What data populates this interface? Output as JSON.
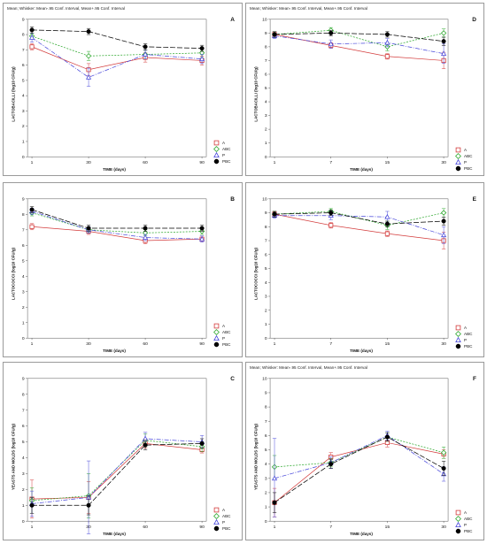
{
  "header_text": "Mean;  Whisker: Mean-.95 Conf. Interval, Mean+.95 Conf. Interval",
  "legend": [
    {
      "name": "A",
      "marker": "square",
      "color": "#d33b3b",
      "dash": ""
    },
    {
      "name": "ABC",
      "marker": "diamond",
      "color": "#2ea82e",
      "dash": "2,1.5"
    },
    {
      "name": "P",
      "marker": "triangle",
      "color": "#4a4adb",
      "dash": "5,1.5,1,1.5"
    },
    {
      "name": "PBC",
      "marker": "circle",
      "color": "#000000",
      "dash": "6,2"
    }
  ],
  "chart_data": [
    {
      "type": "line",
      "panel": "A",
      "title": "Mean;  Whisker: Mean-.95 Conf. Interval, Mean+.95 Conf. Interval",
      "xlabel": "TIME (days)",
      "ylabel": "LACTOBACILLI  (log10 CFU/g)",
      "x": [
        "1",
        "30",
        "60",
        "90"
      ],
      "ylim": [
        0,
        9
      ],
      "yticks": [
        0,
        1,
        2,
        3,
        4,
        5,
        6,
        7,
        8,
        9
      ],
      "series": [
        {
          "name": "A",
          "values": [
            7.2,
            5.7,
            6.5,
            6.3
          ],
          "lo": [
            7.0,
            5.3,
            6.2,
            6.0
          ],
          "hi": [
            7.4,
            6.1,
            6.8,
            6.6
          ]
        },
        {
          "name": "ABC",
          "values": [
            7.9,
            6.6,
            6.7,
            6.8
          ],
          "lo": [
            7.7,
            6.3,
            6.4,
            6.5
          ],
          "hi": [
            8.1,
            6.9,
            7.0,
            7.1
          ]
        },
        {
          "name": "P",
          "values": [
            7.8,
            5.2,
            6.7,
            6.4
          ],
          "lo": [
            7.5,
            4.6,
            6.4,
            6.1
          ],
          "hi": [
            8.1,
            5.8,
            7.0,
            6.7
          ]
        },
        {
          "name": "PBC",
          "values": [
            8.3,
            8.2,
            7.2,
            7.1
          ],
          "lo": [
            8.1,
            8.0,
            7.0,
            6.9
          ],
          "hi": [
            8.5,
            8.4,
            7.4,
            7.3
          ]
        }
      ]
    },
    {
      "type": "line",
      "panel": "D",
      "title": "Mean;  Whisker: Mean-.95 Conf. Interval, Mean+.95 Conf. Interval",
      "xlabel": "TIME (days)",
      "ylabel": "LACTOBACILLI  (log10 CFU/g)",
      "x": [
        "1",
        "7",
        "15",
        "30"
      ],
      "ylim": [
        0,
        10
      ],
      "yticks": [
        0,
        1,
        2,
        3,
        4,
        5,
        6,
        7,
        8,
        9,
        10
      ],
      "series": [
        {
          "name": "A",
          "values": [
            8.9,
            8.1,
            7.3,
            7.0
          ],
          "lo": [
            8.7,
            7.9,
            7.1,
            6.4
          ],
          "hi": [
            9.1,
            8.3,
            7.5,
            7.6
          ]
        },
        {
          "name": "ABC",
          "values": [
            8.9,
            9.2,
            8.0,
            9.0
          ],
          "lo": [
            8.7,
            9.0,
            7.7,
            8.7
          ],
          "hi": [
            9.1,
            9.4,
            8.3,
            9.3
          ]
        },
        {
          "name": "P",
          "values": [
            8.8,
            8.2,
            8.3,
            7.5
          ],
          "lo": [
            8.6,
            7.9,
            8.0,
            6.8
          ],
          "hi": [
            9.0,
            8.5,
            8.6,
            8.2
          ]
        },
        {
          "name": "PBC",
          "values": [
            8.9,
            9.0,
            8.9,
            8.4
          ],
          "lo": [
            8.7,
            8.8,
            8.7,
            8.1
          ],
          "hi": [
            9.1,
            9.2,
            9.1,
            8.7
          ]
        }
      ]
    },
    {
      "type": "line",
      "panel": "B",
      "title": "Mean;  Whisker: Mean-.95 Conf. Interval, Mean+.95 Conf. Interval",
      "xlabel": "TIME (days)",
      "ylabel": "LACTOCOCCI  (log10 CFU/g)",
      "x": [
        "1",
        "30",
        "60",
        "90"
      ],
      "ylim": [
        0,
        9
      ],
      "yticks": [
        0,
        1,
        2,
        3,
        4,
        5,
        6,
        7,
        8,
        9
      ],
      "series": [
        {
          "name": "A",
          "values": [
            7.2,
            6.9,
            6.3,
            6.4
          ],
          "lo": [
            7.0,
            6.7,
            6.1,
            6.2
          ],
          "hi": [
            7.4,
            7.1,
            6.5,
            6.6
          ]
        },
        {
          "name": "ABC",
          "values": [
            8.1,
            7.0,
            6.8,
            6.9
          ],
          "lo": [
            7.9,
            6.8,
            6.6,
            6.7
          ],
          "hi": [
            8.3,
            7.2,
            7.0,
            7.1
          ]
        },
        {
          "name": "P",
          "values": [
            8.2,
            7.0,
            6.5,
            6.4
          ],
          "lo": [
            8.0,
            6.8,
            6.3,
            6.2
          ],
          "hi": [
            8.4,
            7.2,
            6.7,
            6.6
          ]
        },
        {
          "name": "PBC",
          "values": [
            8.3,
            7.1,
            7.1,
            7.1
          ],
          "lo": [
            8.1,
            6.9,
            6.9,
            6.9
          ],
          "hi": [
            8.5,
            7.3,
            7.3,
            7.3
          ]
        }
      ]
    },
    {
      "type": "line",
      "panel": "E",
      "title": "Mean;  Whisker: Mean-.95 Conf. Interval, Mean+.95 Conf. Interval",
      "xlabel": "TIME (days)",
      "ylabel": "LACTOCOCCI  (log10 CFU/g)",
      "x": [
        "1",
        "7",
        "15",
        "30"
      ],
      "ylim": [
        0,
        10
      ],
      "yticks": [
        0,
        1,
        2,
        3,
        4,
        5,
        6,
        7,
        8,
        9,
        10
      ],
      "series": [
        {
          "name": "A",
          "values": [
            8.9,
            8.1,
            7.5,
            7.0
          ],
          "lo": [
            8.7,
            7.9,
            7.3,
            6.4
          ],
          "hi": [
            9.1,
            8.3,
            7.7,
            7.6
          ]
        },
        {
          "name": "ABC",
          "values": [
            8.9,
            9.1,
            8.1,
            9.0
          ],
          "lo": [
            8.7,
            8.9,
            7.8,
            8.7
          ],
          "hi": [
            9.1,
            9.3,
            8.4,
            9.3
          ]
        },
        {
          "name": "P",
          "values": [
            8.8,
            8.8,
            8.7,
            7.4
          ],
          "lo": [
            8.6,
            8.5,
            8.3,
            6.8
          ],
          "hi": [
            9.0,
            9.1,
            9.1,
            8.0
          ]
        },
        {
          "name": "PBC",
          "values": [
            8.9,
            9.0,
            8.2,
            8.4
          ],
          "lo": [
            8.7,
            8.8,
            8.0,
            8.1
          ],
          "hi": [
            9.1,
            9.2,
            8.4,
            8.7
          ]
        }
      ]
    },
    {
      "type": "line",
      "panel": "C",
      "title": "Mean;  Whisker: Mean-.95 Conf. Interval, Mean+.95 Conf. Interval",
      "xlabel": "TIME (days)",
      "ylabel": "YEASTS AND MOLDS  (log10 CFU/g)",
      "x": [
        "1",
        "30",
        "60",
        "90"
      ],
      "ylim": [
        0,
        9
      ],
      "yticks": [
        0,
        1,
        2,
        3,
        4,
        5,
        6,
        7,
        8,
        9
      ],
      "series": [
        {
          "name": "A",
          "values": [
            1.4,
            1.5,
            4.9,
            4.5
          ],
          "lo": [
            0.2,
            0.5,
            4.6,
            4.3
          ],
          "hi": [
            2.6,
            2.5,
            5.2,
            4.7
          ]
        },
        {
          "name": "ABC",
          "values": [
            1.3,
            1.6,
            5.1,
            4.7
          ],
          "lo": [
            0.5,
            0.2,
            4.7,
            4.4
          ],
          "hi": [
            2.1,
            3.0,
            5.5,
            5.0
          ]
        },
        {
          "name": "P",
          "values": [
            1.1,
            1.5,
            5.2,
            5.0
          ],
          "lo": [
            0.3,
            -0.8,
            4.8,
            4.6
          ],
          "hi": [
            1.9,
            3.8,
            5.6,
            5.4
          ]
        },
        {
          "name": "PBC",
          "values": [
            1.0,
            1.0,
            4.8,
            4.9
          ],
          "lo": [
            0.5,
            0.4,
            4.5,
            4.6
          ],
          "hi": [
            1.5,
            1.6,
            5.1,
            5.2
          ]
        }
      ]
    },
    {
      "type": "line",
      "panel": "F",
      "title": "Mean;  Whisker: Mean-.95 Conf. Interval, Mean+.95 Conf. Interval",
      "xlabel": "TIME (days)",
      "ylabel": "YEASTS AND MOLDS  (log10 CFU/g)",
      "x": [
        "1",
        "7",
        "15",
        "30"
      ],
      "ylim": [
        0,
        10
      ],
      "yticks": [
        0,
        1,
        2,
        3,
        4,
        5,
        6,
        7,
        8,
        9,
        10
      ],
      "series": [
        {
          "name": "A",
          "values": [
            1.3,
            4.5,
            5.5,
            4.7
          ],
          "lo": [
            0.3,
            4.2,
            5.2,
            4.4
          ],
          "hi": [
            2.3,
            4.8,
            5.8,
            5.0
          ]
        },
        {
          "name": "ABC",
          "values": [
            3.8,
            4.1,
            5.9,
            4.8
          ],
          "lo": [
            3.0,
            3.8,
            5.6,
            4.4
          ],
          "hi": [
            4.6,
            4.4,
            6.2,
            5.2
          ]
        },
        {
          "name": "P",
          "values": [
            3.0,
            4.1,
            6.0,
            3.3
          ],
          "lo": [
            0.3,
            3.7,
            5.7,
            2.8
          ],
          "hi": [
            5.8,
            4.5,
            6.3,
            3.8
          ]
        },
        {
          "name": "PBC",
          "values": [
            1.3,
            4.0,
            5.9,
            3.7
          ],
          "lo": [
            0.6,
            3.7,
            5.6,
            3.2
          ],
          "hi": [
            2.0,
            4.3,
            6.2,
            4.2
          ]
        }
      ]
    }
  ]
}
